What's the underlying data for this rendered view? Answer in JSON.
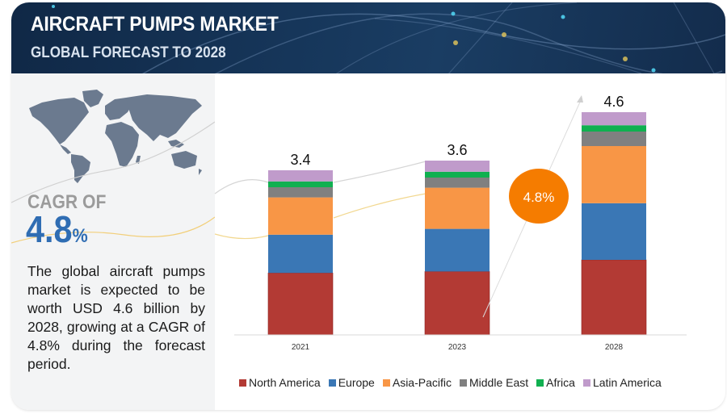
{
  "header": {
    "title": "AIRCRAFT PUMPS MARKET",
    "subtitle": "GLOBAL FORECAST TO 2028"
  },
  "left_panel": {
    "map_icon": "world-map-icon",
    "cagr_label": "CAGR OF",
    "cagr_value": "4.8",
    "cagr_unit": "%",
    "description": "The global aircraft pumps market is expected to be worth USD 4.6 billion by 2028, growing at a CAGR of 4.8% during the forecast period."
  },
  "colors": {
    "header_bg": "#15335a",
    "cagr_blue": "#2f6db3",
    "badge_orange": "#f57c00"
  },
  "chart_data": {
    "type": "bar",
    "stacked": true,
    "title": "",
    "xlabel": "",
    "ylabel": "",
    "categories": [
      "2021",
      "2023",
      "2028"
    ],
    "totals": [
      3.4,
      3.6,
      4.6
    ],
    "total_labels": [
      "3.4",
      "3.6",
      "4.6"
    ],
    "ylim": [
      0,
      4.6
    ],
    "grid": false,
    "legend_position": "bottom",
    "series": [
      {
        "name": "North America",
        "color": "#b33a34",
        "values": [
          1.28,
          1.31,
          1.55
        ]
      },
      {
        "name": "Europe",
        "color": "#3a77b5",
        "values": [
          0.79,
          0.88,
          1.17
        ]
      },
      {
        "name": "Asia-Pacific",
        "color": "#f89646",
        "values": [
          0.77,
          0.85,
          1.18
        ]
      },
      {
        "name": "Middle East",
        "color": "#808080",
        "values": [
          0.21,
          0.21,
          0.3
        ]
      },
      {
        "name": "Africa",
        "color": "#10b050",
        "values": [
          0.12,
          0.12,
          0.13
        ]
      },
      {
        "name": "Latin America",
        "color": "#c09bcb",
        "values": [
          0.23,
          0.23,
          0.27
        ]
      }
    ],
    "annotations": [
      {
        "type": "badge",
        "text": "4.8%",
        "meaning": "CAGR 2023-2028"
      },
      {
        "type": "arrow",
        "meaning": "growth trend to 2028"
      }
    ]
  }
}
